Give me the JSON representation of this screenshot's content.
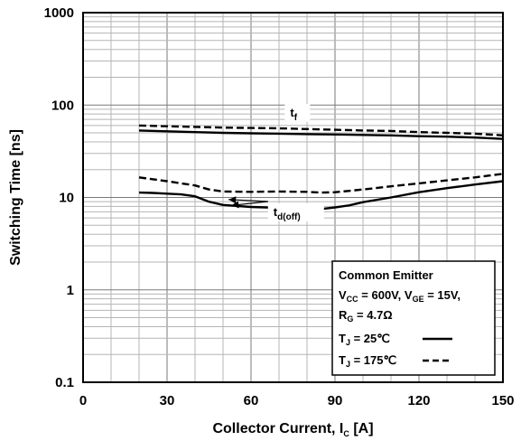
{
  "chart_data": {
    "type": "line",
    "xlabel": {
      "main": "Collector Current, I",
      "sub": "C",
      "tail": " [A]"
    },
    "ylabel": "Switching Time [ns]",
    "xlim": [
      0,
      150
    ],
    "ylim": [
      0.1,
      1000
    ],
    "yscale": "log",
    "grid": true,
    "x_ticks": [
      0,
      30,
      60,
      90,
      120,
      150
    ],
    "x_tick_labels": [
      "0",
      "30",
      "60",
      "90",
      "120",
      "150"
    ],
    "y_ticks": [
      0.1,
      1,
      10,
      100,
      1000
    ],
    "y_tick_labels": [
      "0.1",
      "1",
      "10",
      "100",
      "1000"
    ],
    "annotations": [
      {
        "id": "tf",
        "main": "t",
        "sub": "f",
        "x": 74,
        "y": 75
      },
      {
        "id": "td",
        "main": "t",
        "sub": "d(off)",
        "x": 68,
        "y": 6.3,
        "arrow_targets": [
          {
            "x": 52,
            "y": 9.5
          },
          {
            "x": 53,
            "y": 8.2
          }
        ]
      }
    ],
    "legend": {
      "position": "bottom-right",
      "title": "Common Emitter",
      "line2": [
        {
          "text": "V",
          "sub": false
        },
        {
          "text": "CC",
          "sub": true
        },
        {
          "text": " = 600V, V",
          "sub": false
        },
        {
          "text": "GE",
          "sub": true
        },
        {
          "text": " = 15V,",
          "sub": false
        }
      ],
      "line3": [
        {
          "text": "R",
          "sub": false
        },
        {
          "text": "G",
          "sub": true
        },
        {
          "text": " = 4.7Ω",
          "sub": false
        }
      ],
      "entries": [
        {
          "main": "T",
          "sub": "J",
          "tail": " = 25℃",
          "style": "solid"
        },
        {
          "main": "T",
          "sub": "J",
          "tail": " = 175℃",
          "style": "dashed"
        }
      ]
    },
    "series": [
      {
        "id": "tf_25",
        "style": "solid",
        "x": [
          20,
          30,
          40,
          50,
          60,
          70,
          80,
          90,
          100,
          110,
          120,
          130,
          140,
          150
        ],
        "y": [
          53,
          52,
          51,
          50,
          49.5,
          49,
          48.5,
          48,
          47.5,
          47,
          46,
          45.5,
          44.5,
          43
        ]
      },
      {
        "id": "tf_175",
        "style": "dashed",
        "x": [
          20,
          30,
          40,
          50,
          60,
          70,
          80,
          90,
          100,
          110,
          120,
          130,
          140,
          150
        ],
        "y": [
          60,
          59,
          58,
          57,
          56.5,
          56,
          55,
          54,
          53,
          52.5,
          51,
          50,
          49,
          47
        ]
      },
      {
        "id": "td_25",
        "style": "solid",
        "x": [
          20,
          25,
          30,
          35,
          40,
          45,
          50,
          55,
          60,
          65,
          70,
          75,
          80,
          85,
          90,
          95,
          100,
          110,
          120,
          130,
          140,
          150
        ],
        "y": [
          11.3,
          11.2,
          11.0,
          10.8,
          10.3,
          9.0,
          8.3,
          8.1,
          7.9,
          7.8,
          7.7,
          7.6,
          7.5,
          7.5,
          7.8,
          8.2,
          8.9,
          10.0,
          11.4,
          12.6,
          13.8,
          15.0
        ]
      },
      {
        "id": "td_175",
        "style": "dashed",
        "x": [
          20,
          30,
          40,
          45,
          50,
          60,
          70,
          80,
          85,
          90,
          100,
          110,
          120,
          130,
          140,
          150
        ],
        "y": [
          16.5,
          15.0,
          13.5,
          12.2,
          11.6,
          11.5,
          11.6,
          11.5,
          11.3,
          11.4,
          12.2,
          13.2,
          14.2,
          15.3,
          16.5,
          18.0
        ]
      }
    ]
  }
}
